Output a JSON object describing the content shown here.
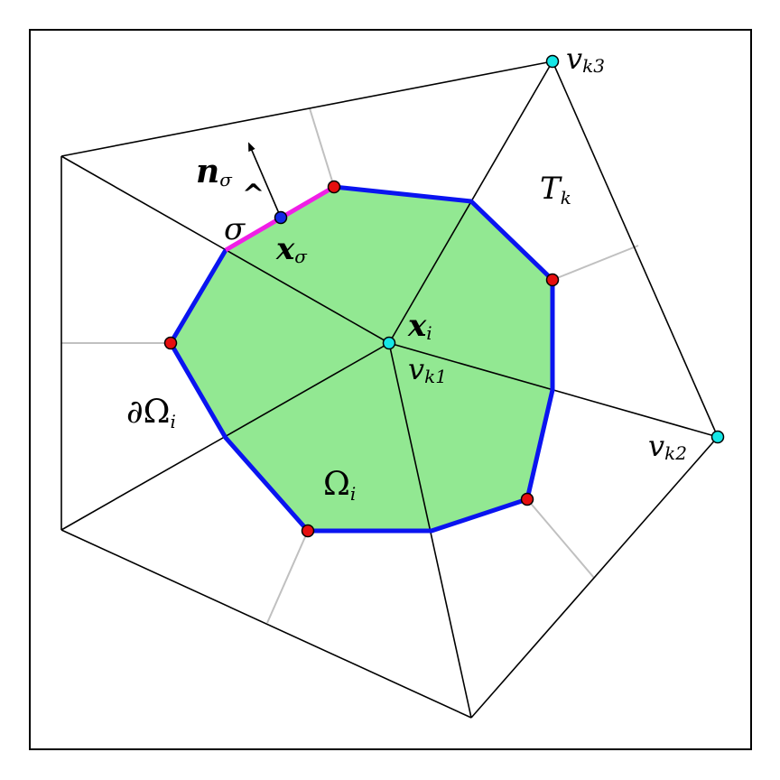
{
  "colors": {
    "cell_fill": "#92e892",
    "cell_boundary": "#0a14f0",
    "highlight_edge": "#f01ee6",
    "mesh_edge": "#000000",
    "dual_edge": "#c0c0c0",
    "vertex_point": "#15e6e6",
    "boundary_point": "#e60f0f",
    "face_point": "#1428e6"
  },
  "labels": {
    "n_main": "n",
    "n_hat": "^",
    "n_sub": "σ",
    "sigma": "σ",
    "x_sigma_main": "x",
    "x_sigma_sub": "σ",
    "x_i_main": "x",
    "x_i_sub": "i",
    "v_k1_main": "v",
    "v_k1_sub": "k1",
    "v_k2_main": "v",
    "v_k2_sub": "k2",
    "v_k3_main": "v",
    "v_k3_sub": "k3",
    "t_k_main": "T",
    "t_k_sub": "k",
    "omega_main": "Ω",
    "omega_sub": "i",
    "d_omega_main": "∂Ω",
    "d_omega_sub": "i"
  }
}
